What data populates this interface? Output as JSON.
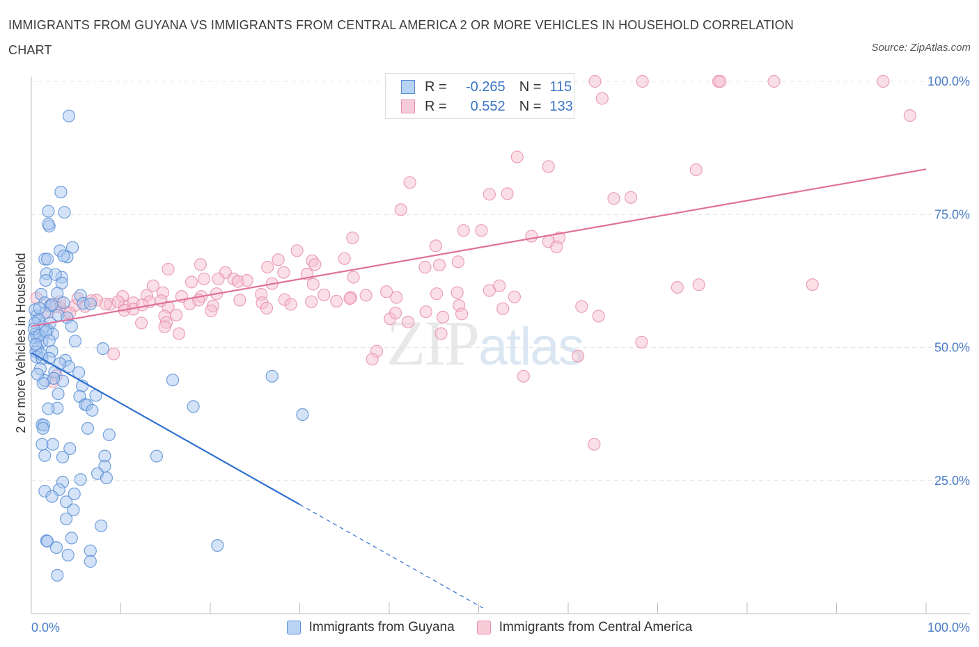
{
  "title": "IMMIGRANTS FROM GUYANA VS IMMIGRANTS FROM CENTRAL AMERICA 2 OR MORE VEHICLES IN HOUSEHOLD CORRELATION CHART",
  "source": "Source: ZipAtlas.com",
  "watermark": {
    "zip": "ZIP",
    "atlas": "atlas"
  },
  "legend": {
    "rows": [
      {
        "r_label": "R =",
        "r_value": "-0.265",
        "n_label": "N =",
        "n_value": "115"
      },
      {
        "r_label": "R =",
        "r_value": "0.552",
        "n_label": "N =",
        "n_value": "133"
      }
    ]
  },
  "bottom_legend": [
    "Immigrants from Guyana",
    "Immigrants from Central America"
  ],
  "colors": {
    "guyana_fill": "#a9c8f0",
    "guyana_stroke": "#5b8fd6",
    "guyana_line": "#2f6fcf",
    "central_fill": "#f6bfd0",
    "central_stroke": "#e890ae",
    "central_line": "#e0709a"
  },
  "chart_data": {
    "type": "scatter",
    "xlabel": "",
    "ylabel": "2 or more Vehicles in Household",
    "xlim": [
      0,
      100
    ],
    "ylim": [
      0,
      100
    ],
    "x_tick_labels": [
      "0.0%",
      "100.0%"
    ],
    "y_tick_labels": [
      "25.0%",
      "50.0%",
      "75.0%",
      "100.0%"
    ],
    "y_ticks": [
      25,
      50,
      75,
      100
    ],
    "grid": true,
    "series": [
      {
        "name": "Immigrants from Guyana",
        "trend": {
          "x0": 0,
          "y0": 49,
          "x1": 30,
          "y1": 20.5,
          "dash_to_x": 50.5
        },
        "points": [
          [
            4.2,
            93.5
          ],
          [
            3.3,
            79.2
          ],
          [
            1.9,
            75.6
          ],
          [
            3.7,
            75.4
          ],
          [
            2.0,
            72.8
          ],
          [
            1.9,
            73.2
          ],
          [
            4.6,
            68.8
          ],
          [
            3.2,
            68.2
          ],
          [
            4.0,
            67.0
          ],
          [
            1.5,
            66.6
          ],
          [
            1.8,
            66.6
          ],
          [
            3.6,
            67.2
          ],
          [
            1.7,
            63.9
          ],
          [
            3.4,
            63.2
          ],
          [
            2.7,
            63.7
          ],
          [
            1.6,
            62.6
          ],
          [
            3.4,
            62.1
          ],
          [
            2.9,
            60.2
          ],
          [
            5.5,
            59.8
          ],
          [
            1.1,
            60.0
          ],
          [
            1.5,
            58.4
          ],
          [
            2.1,
            57.8
          ],
          [
            2.3,
            58.0
          ],
          [
            3.6,
            58.4
          ],
          [
            5.8,
            58.3
          ],
          [
            6.6,
            58.2
          ],
          [
            0.6,
            56.0
          ],
          [
            1.5,
            56.5
          ],
          [
            3.0,
            56.1
          ],
          [
            0.8,
            55.2
          ],
          [
            4.0,
            55.6
          ],
          [
            4.5,
            54.0
          ],
          [
            2.1,
            54.6
          ],
          [
            0.4,
            54.6
          ],
          [
            1.3,
            53.9
          ],
          [
            0.5,
            52.6
          ],
          [
            0.6,
            52.1
          ],
          [
            1.8,
            53.3
          ],
          [
            2.4,
            52.5
          ],
          [
            0.3,
            51.9
          ],
          [
            1.2,
            51.1
          ],
          [
            4.9,
            51.2
          ],
          [
            0.7,
            49.8
          ],
          [
            0.5,
            49.2
          ],
          [
            2.3,
            49.3
          ],
          [
            0.6,
            48.2
          ],
          [
            1.2,
            47.9
          ],
          [
            3.8,
            47.6
          ],
          [
            4.2,
            46.4
          ],
          [
            8.0,
            49.8
          ],
          [
            5.3,
            45.3
          ],
          [
            2.6,
            45.4
          ],
          [
            3.5,
            43.7
          ],
          [
            1.5,
            43.8
          ],
          [
            1.3,
            43.3
          ],
          [
            5.7,
            42.8
          ],
          [
            15.8,
            43.9
          ],
          [
            26.9,
            44.6
          ],
          [
            3.0,
            41.3
          ],
          [
            5.4,
            40.8
          ],
          [
            7.2,
            41.0
          ],
          [
            6.0,
            39.3
          ],
          [
            6.2,
            39.2
          ],
          [
            18.1,
            38.9
          ],
          [
            2.9,
            38.6
          ],
          [
            1.9,
            38.5
          ],
          [
            6.8,
            38.2
          ],
          [
            30.3,
            37.4
          ],
          [
            1.2,
            35.5
          ],
          [
            1.4,
            35.4
          ],
          [
            1.3,
            34.8
          ],
          [
            6.3,
            34.8
          ],
          [
            8.7,
            33.6
          ],
          [
            1.2,
            31.8
          ],
          [
            2.4,
            31.8
          ],
          [
            4.3,
            31.0
          ],
          [
            1.5,
            29.7
          ],
          [
            3.5,
            29.4
          ],
          [
            14.0,
            29.6
          ],
          [
            8.2,
            29.6
          ],
          [
            8.2,
            27.7
          ],
          [
            7.4,
            26.3
          ],
          [
            8.4,
            25.5
          ],
          [
            5.5,
            25.2
          ],
          [
            3.5,
            24.7
          ],
          [
            1.5,
            23.0
          ],
          [
            3.1,
            23.3
          ],
          [
            4.8,
            22.5
          ],
          [
            2.3,
            22.0
          ],
          [
            3.9,
            21.0
          ],
          [
            4.7,
            19.5
          ],
          [
            3.9,
            17.8
          ],
          [
            7.8,
            16.5
          ],
          [
            1.7,
            13.7
          ],
          [
            1.8,
            13.6
          ],
          [
            4.5,
            14.2
          ],
          [
            2.8,
            12.4
          ],
          [
            6.6,
            11.8
          ],
          [
            20.8,
            12.8
          ],
          [
            4.1,
            11.0
          ],
          [
            6.6,
            9.8
          ],
          [
            2.9,
            7.2
          ],
          [
            0.4,
            57.1
          ],
          [
            0.9,
            57.4
          ],
          [
            0.3,
            53.5
          ],
          [
            0.9,
            52.3
          ],
          [
            1.6,
            53.0
          ],
          [
            2.0,
            51.3
          ],
          [
            0.5,
            50.6
          ],
          [
            1.1,
            48.7
          ],
          [
            2.0,
            48.0
          ],
          [
            3.2,
            47.0
          ],
          [
            1.0,
            46.0
          ],
          [
            0.7,
            45.0
          ],
          [
            2.5,
            44.2
          ]
        ]
      },
      {
        "name": "Immigrants from Central America",
        "trend": {
          "x0": 0,
          "y0": 54,
          "x1": 100,
          "y1": 83.5
        },
        "points": [
          [
            55.2,
            100
          ],
          [
            63.0,
            100
          ],
          [
            68.3,
            100
          ],
          [
            76.8,
            100
          ],
          [
            77.0,
            100
          ],
          [
            83.0,
            100
          ],
          [
            95.2,
            100
          ],
          [
            55.0,
            100
          ],
          [
            63.8,
            96.8
          ],
          [
            98.2,
            93.6
          ],
          [
            54.3,
            85.8
          ],
          [
            57.8,
            84.0
          ],
          [
            74.3,
            83.4
          ],
          [
            42.3,
            81.0
          ],
          [
            51.2,
            78.8
          ],
          [
            53.2,
            78.9
          ],
          [
            65.1,
            78.0
          ],
          [
            67.0,
            78.2
          ],
          [
            41.3,
            75.9
          ],
          [
            48.3,
            72.0
          ],
          [
            50.3,
            72.0
          ],
          [
            55.9,
            70.9
          ],
          [
            59.0,
            70.6
          ],
          [
            35.9,
            70.6
          ],
          [
            57.8,
            69.9
          ],
          [
            58.7,
            68.9
          ],
          [
            45.2,
            69.1
          ],
          [
            29.7,
            68.2
          ],
          [
            31.4,
            66.3
          ],
          [
            35.0,
            66.7
          ],
          [
            31.7,
            65.6
          ],
          [
            47.7,
            66.1
          ],
          [
            27.6,
            66.5
          ],
          [
            45.6,
            65.5
          ],
          [
            26.4,
            65.1
          ],
          [
            18.9,
            65.6
          ],
          [
            44.0,
            65.1
          ],
          [
            15.3,
            64.7
          ],
          [
            21.7,
            64.1
          ],
          [
            28.2,
            64.1
          ],
          [
            30.8,
            63.8
          ],
          [
            36.0,
            63.2
          ],
          [
            20.9,
            62.9
          ],
          [
            22.6,
            62.9
          ],
          [
            23.1,
            62.4
          ],
          [
            19.3,
            62.9
          ],
          [
            24.1,
            62.6
          ],
          [
            26.9,
            62.0
          ],
          [
            31.5,
            61.9
          ],
          [
            13.6,
            61.6
          ],
          [
            17.9,
            62.3
          ],
          [
            14.7,
            60.3
          ],
          [
            20.7,
            60.1
          ],
          [
            25.7,
            60.0
          ],
          [
            32.7,
            59.9
          ],
          [
            28.3,
            59.0
          ],
          [
            35.7,
            59.4
          ],
          [
            40.8,
            59.4
          ],
          [
            47.6,
            60.3
          ],
          [
            52.3,
            61.6
          ],
          [
            51.2,
            60.7
          ],
          [
            45.3,
            60.1
          ],
          [
            39.7,
            60.5
          ],
          [
            37.4,
            59.8
          ],
          [
            34.1,
            58.7
          ],
          [
            35.6,
            59.2
          ],
          [
            19.0,
            59.6
          ],
          [
            23.3,
            58.9
          ],
          [
            16.8,
            59.6
          ],
          [
            12.9,
            59.8
          ],
          [
            10.2,
            59.6
          ],
          [
            7.3,
            58.9
          ],
          [
            8.8,
            58.1
          ],
          [
            11.4,
            58.4
          ],
          [
            10.4,
            57.8
          ],
          [
            13.2,
            58.6
          ],
          [
            14.5,
            58.8
          ],
          [
            3.2,
            57.6
          ],
          [
            4.9,
            57.9
          ],
          [
            6.0,
            57.7
          ],
          [
            8.3,
            58.2
          ],
          [
            5.2,
            59.2
          ],
          [
            6.7,
            58.8
          ],
          [
            0.6,
            59.3
          ],
          [
            2.2,
            58.1
          ],
          [
            3.2,
            58.6
          ],
          [
            17.7,
            58.2
          ],
          [
            18.7,
            58.9
          ],
          [
            15.3,
            57.6
          ],
          [
            9.7,
            58.6
          ],
          [
            10.4,
            57.0
          ],
          [
            2.7,
            57.7
          ],
          [
            3.9,
            56.6
          ],
          [
            4.3,
            56.5
          ],
          [
            1.9,
            56.6
          ],
          [
            11.4,
            57.2
          ],
          [
            12.4,
            58.0
          ],
          [
            14.9,
            55.9
          ],
          [
            25.8,
            58.4
          ],
          [
            29.0,
            58.1
          ],
          [
            31.3,
            58.6
          ],
          [
            20.3,
            57.8
          ],
          [
            40.1,
            55.4
          ],
          [
            44.1,
            56.7
          ],
          [
            47.8,
            57.9
          ],
          [
            52.7,
            57.3
          ],
          [
            54.0,
            59.5
          ],
          [
            61.5,
            57.7
          ],
          [
            63.4,
            55.9
          ],
          [
            48.1,
            56.3
          ],
          [
            40.7,
            56.5
          ],
          [
            46.0,
            55.7
          ],
          [
            42.1,
            54.8
          ],
          [
            26.3,
            57.4
          ],
          [
            20.1,
            56.9
          ],
          [
            16.2,
            56.1
          ],
          [
            15.1,
            54.7
          ],
          [
            12.3,
            54.6
          ],
          [
            14.9,
            53.9
          ],
          [
            16.5,
            52.6
          ],
          [
            9.2,
            48.8
          ],
          [
            38.6,
            49.3
          ],
          [
            38.1,
            47.8
          ],
          [
            61.1,
            48.4
          ],
          [
            68.2,
            51.0
          ],
          [
            45.8,
            52.6
          ],
          [
            55.0,
            44.6
          ],
          [
            62.9,
            31.8
          ],
          [
            72.2,
            61.3
          ],
          [
            74.6,
            61.8
          ],
          [
            87.3,
            61.8
          ],
          [
            2.8,
            44.7
          ],
          [
            2.4,
            43.6
          ]
        ]
      }
    ]
  }
}
